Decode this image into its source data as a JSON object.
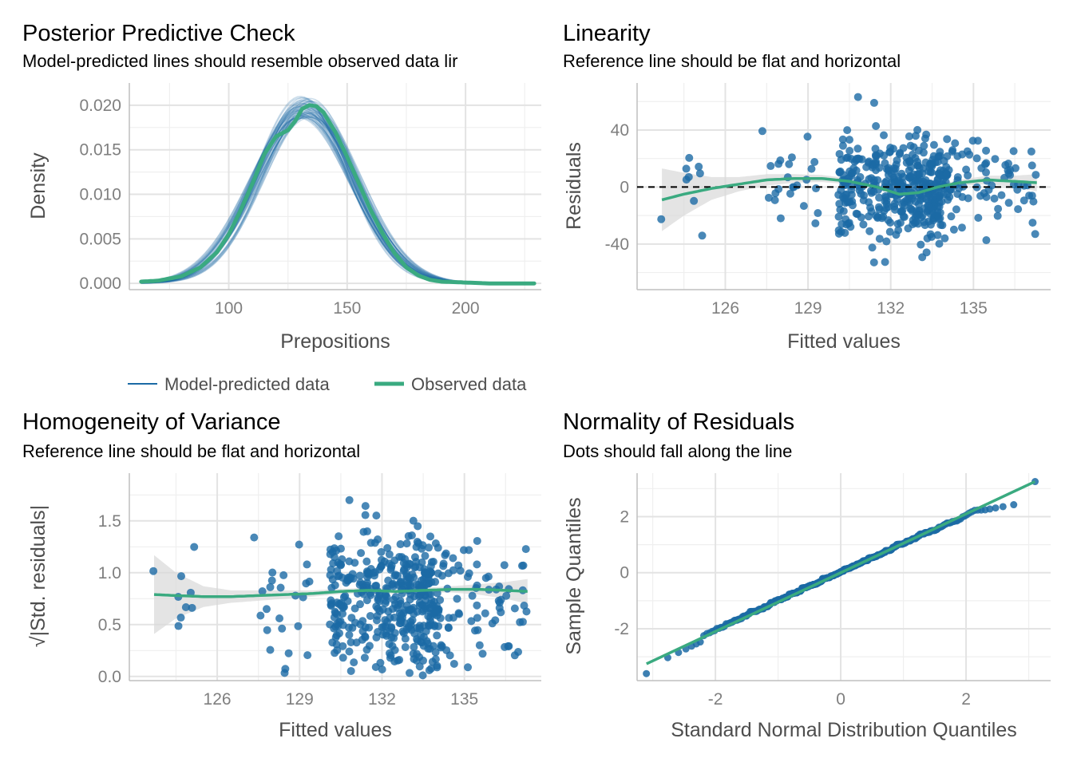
{
  "colors": {
    "model": "#1b6aa5",
    "observed": "#3aaa80",
    "points": "#1b6aa5",
    "band": "#d9d9d9",
    "grid_major": "#e3e3e3",
    "grid_minor": "#efefef",
    "axis": "#bfbfbf",
    "reference": "#000000"
  },
  "chart_data": [
    {
      "id": "ppc",
      "type": "line",
      "title": "Posterior Predictive Check",
      "subtitle": "Model-predicted lines should resemble observed data lir",
      "xlabel": "Prepositions",
      "ylabel": "Density",
      "xlim": [
        58,
        232
      ],
      "ylim": [
        -0.0007,
        0.0225
      ],
      "x_ticks": [
        100,
        150,
        200
      ],
      "x_tick_labels": [
        "100",
        "150",
        "200"
      ],
      "y_ticks": [
        0,
        0.005,
        0.01,
        0.015,
        0.02
      ],
      "y_tick_labels": [
        "0.000",
        "0.005",
        "0.010",
        "0.015",
        "0.020"
      ],
      "grid": true,
      "legend": {
        "position": "bottom",
        "entries": [
          {
            "label": "Model-predicted data",
            "color": "#1b6aa5"
          },
          {
            "label": "Observed data",
            "color": "#3aaa80"
          }
        ]
      },
      "series": [
        {
          "name": "Observed data",
          "x": [
            63,
            70,
            80,
            88,
            95,
            100,
            105,
            110,
            115,
            120,
            125,
            128,
            131,
            134,
            137,
            140,
            145,
            150,
            155,
            160,
            165,
            170,
            175,
            180,
            185,
            190,
            200,
            210,
            229
          ],
          "y": [
            0.0002,
            0.0003,
            0.0008,
            0.0018,
            0.0035,
            0.0055,
            0.0082,
            0.0112,
            0.0145,
            0.0165,
            0.0172,
            0.0182,
            0.0196,
            0.02,
            0.0199,
            0.0192,
            0.017,
            0.0142,
            0.0112,
            0.0082,
            0.0056,
            0.0034,
            0.0018,
            0.0009,
            0.0004,
            0.0002,
            0.0001,
            0,
            0
          ]
        }
      ],
      "model_draws": {
        "name": "Model-predicted data",
        "count": 50,
        "x_range": [
          63,
          229
        ],
        "mean_range": [
          129,
          136
        ],
        "sd_range": [
          19,
          21.5
        ]
      }
    },
    {
      "id": "linearity",
      "type": "scatter",
      "title": "Linearity",
      "subtitle": "Reference line should be flat and horizontal",
      "xlabel": "Fitted values",
      "ylabel": "Residuals",
      "xlim": [
        122.8,
        137.8
      ],
      "ylim": [
        -72,
        73
      ],
      "x_ticks": [
        126,
        129,
        132,
        135
      ],
      "x_tick_labels": [
        "126",
        "129",
        "132",
        "135"
      ],
      "y_ticks": [
        -40,
        0,
        40
      ],
      "y_tick_labels": [
        "-40",
        "0",
        "40"
      ],
      "grid": true,
      "reference_line": 0,
      "point_count": 520,
      "smooth": {
        "x": [
          123.7,
          124.5,
          125.5,
          126.5,
          127.5,
          128.5,
          129.5,
          130.5,
          131.5,
          132.3,
          133,
          133.7,
          134.5,
          135.5,
          136.5,
          137.3
        ],
        "y": [
          -9,
          -5,
          -1,
          2,
          5,
          6,
          6,
          4,
          0,
          -5,
          -4,
          0,
          3,
          5,
          4,
          3
        ],
        "band_halfwidth": [
          22,
          15,
          8,
          5,
          4,
          3,
          2.5,
          2,
          1.5,
          1.5,
          1.5,
          1.5,
          2,
          3,
          4,
          6
        ]
      }
    },
    {
      "id": "homogeneity",
      "type": "scatter",
      "title": "Homogeneity of Variance",
      "subtitle": "Reference line should be flat and horizontal",
      "xlabel": "Fitted values",
      "ylabel": "√|Std. residuals|",
      "xlim": [
        122.8,
        137.8
      ],
      "ylim": [
        -0.04,
        1.96
      ],
      "x_ticks": [
        126,
        129,
        132,
        135
      ],
      "x_tick_labels": [
        "126",
        "129",
        "132",
        "135"
      ],
      "y_ticks": [
        0,
        0.5,
        1,
        1.5
      ],
      "y_tick_labels": [
        "0.0",
        "0.5",
        "1.0",
        "1.5"
      ],
      "grid": true,
      "point_count": 520,
      "smooth": {
        "x": [
          123.7,
          124.5,
          125.5,
          126.5,
          127.5,
          128.5,
          129.5,
          130.5,
          131.5,
          132.5,
          133.5,
          134.5,
          135.5,
          136.5,
          137.3
        ],
        "y": [
          0.79,
          0.78,
          0.77,
          0.77,
          0.78,
          0.79,
          0.8,
          0.82,
          0.83,
          0.82,
          0.83,
          0.84,
          0.84,
          0.83,
          0.82
        ],
        "band_halfwidth": [
          0.38,
          0.22,
          0.1,
          0.06,
          0.05,
          0.04,
          0.03,
          0.025,
          0.025,
          0.025,
          0.025,
          0.03,
          0.05,
          0.08,
          0.12
        ]
      }
    },
    {
      "id": "normality",
      "type": "scatter",
      "title": "Normality of Residuals",
      "subtitle": "Dots should fall along the line",
      "xlabel": "Standard Normal Distribution Quantiles",
      "ylabel": "Sample Quantiles",
      "xlim": [
        -3.25,
        3.35
      ],
      "ylim": [
        -3.85,
        3.55
      ],
      "x_ticks": [
        -2,
        0,
        2
      ],
      "x_tick_labels": [
        "-2",
        "0",
        "2"
      ],
      "y_ticks": [
        -2,
        0,
        2
      ],
      "y_tick_labels": [
        "-2",
        "0",
        "2"
      ],
      "grid": true,
      "point_count": 520,
      "reference_line": {
        "x": [
          -3.1,
          3.1
        ],
        "y": [
          -3.25,
          3.25
        ]
      }
    }
  ]
}
